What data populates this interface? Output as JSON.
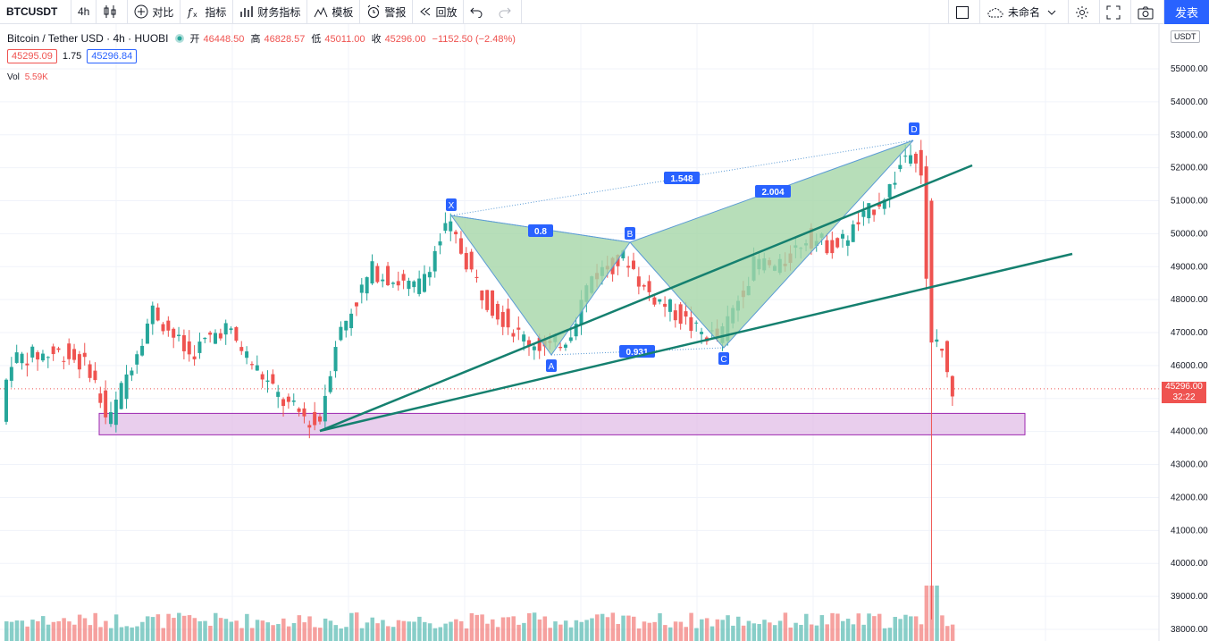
{
  "toolbar": {
    "symbol": "BTCUSDT",
    "interval": "4h",
    "compare_label": "对比",
    "indicators_label": "指标",
    "financials_label": "财务指标",
    "templates_label": "模板",
    "alerts_label": "警报",
    "replay_label": "回放",
    "layout_name": "未命名",
    "publish_label": "发表"
  },
  "legend": {
    "title": "Bitcoin / Tether USD · 4h · HUOBI",
    "open_label": "开",
    "open": "46448.50",
    "high_label": "高",
    "high": "46828.57",
    "low_label": "低",
    "low": "45011.00",
    "close_label": "收",
    "close": "45296.00",
    "change": "−1152.50 (−2.48%)",
    "bid": "45295.09",
    "spread": "1.75",
    "ask": "45296.84",
    "vol_label": "Vol",
    "vol_value": "5.59K"
  },
  "price_axis": {
    "currency": "USDT",
    "last_price": "45296.00",
    "countdown": "32:22",
    "ticks": [
      "55000.00",
      "54000.00",
      "53000.00",
      "52000.00",
      "51000.00",
      "50000.00",
      "49000.00",
      "48000.00",
      "47000.00",
      "46000.00",
      "44000.00",
      "43000.00",
      "42000.00",
      "41000.00",
      "40000.00",
      "39000.00",
      "38000.00"
    ]
  },
  "pattern": {
    "points": [
      "X",
      "A",
      "B",
      "C",
      "D"
    ],
    "ratios": {
      "xa_b": "0.8",
      "ac": "0.931",
      "bc_d": "2.004",
      "xa_d": "1.548"
    }
  },
  "colors": {
    "up": "#26a69a",
    "down": "#ef5350",
    "pattern_fill": "#a5d6a7",
    "zone": "#e1bee7",
    "trend": "#15806f",
    "accent": "#2962ff"
  }
}
